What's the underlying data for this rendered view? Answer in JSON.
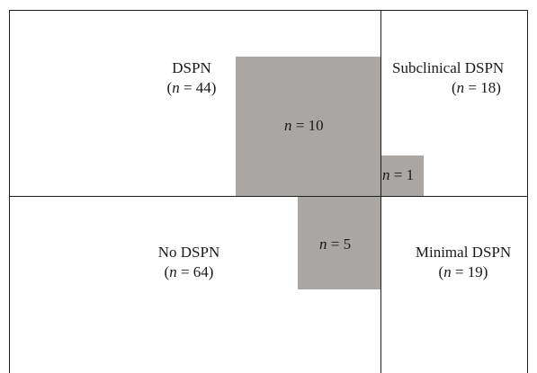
{
  "regions": {
    "top_left": {
      "name": "DSPN",
      "n": "44"
    },
    "top_right": {
      "name": "Subclinical DSPN",
      "n": "18"
    },
    "bottom_left": {
      "name": "No DSPN",
      "n": "64"
    },
    "bottom_right": {
      "name": "Minimal DSPN",
      "n": "19"
    }
  },
  "overlaps": {
    "large": {
      "n": "10"
    },
    "small": {
      "n": "1"
    },
    "lower": {
      "n": "5"
    }
  },
  "symbols": {
    "n_symbol": "n",
    "equals": "="
  },
  "colors": {
    "overlap_fill": "#aaa6a3",
    "line": "#1f1f1f"
  }
}
